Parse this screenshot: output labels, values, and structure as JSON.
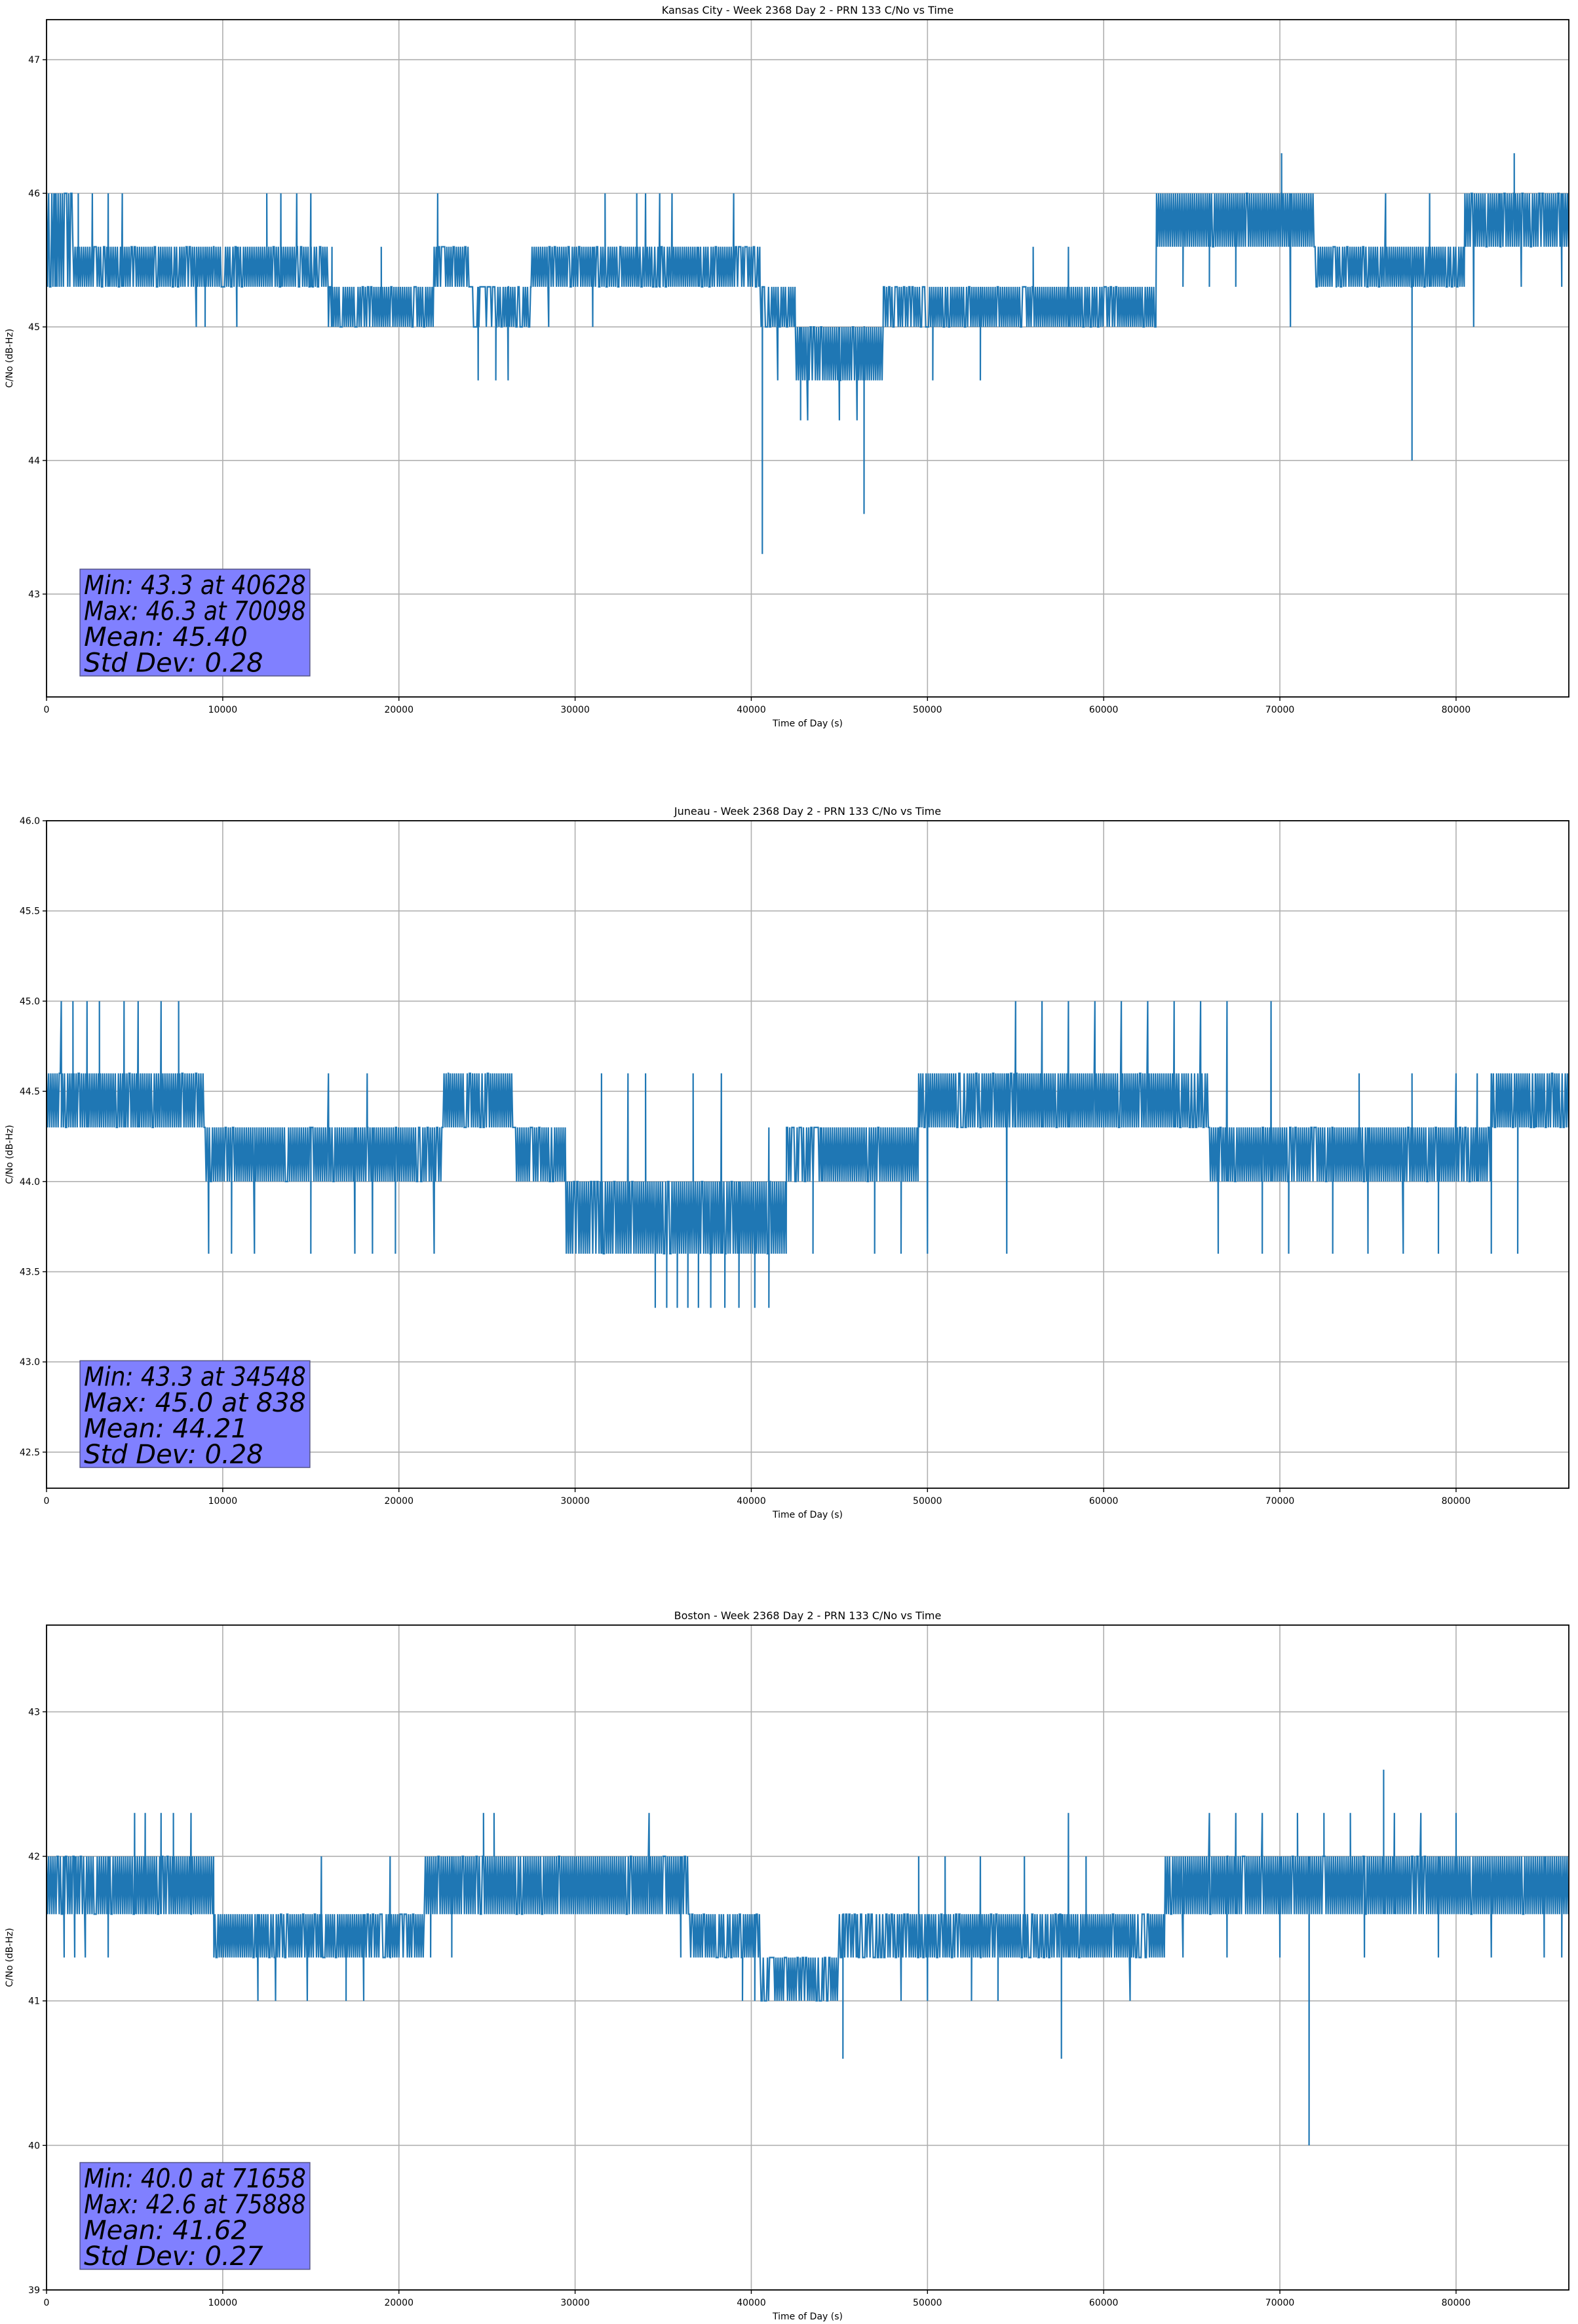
{
  "colors": {
    "line": "#1f77b4",
    "grid": "#b0b0b0",
    "statbox_fill": "#8080ff"
  },
  "chart_data": [
    {
      "type": "line",
      "title": "Kansas City - Week 2368 Day 2 - PRN 133 C/No vs Time",
      "xlabel": "Time of Day (s)",
      "ylabel": "C/No (dB-Hz)",
      "xlim": [
        0,
        86400
      ],
      "ylim": [
        42.23,
        47.3
      ],
      "grid": true,
      "x_ticks": [
        "0",
        "10000",
        "20000",
        "30000",
        "40000",
        "50000",
        "60000",
        "70000",
        "80000"
      ],
      "x_tick_values": [
        0,
        10000,
        20000,
        30000,
        40000,
        50000,
        60000,
        70000,
        80000
      ],
      "y_ticks": [
        "43",
        "44",
        "45",
        "46",
        "47"
      ],
      "y_tick_values": [
        43,
        44,
        45,
        46,
        47
      ],
      "stats": {
        "min_label": "Min: 43.3 at 40628",
        "max_label": "Max: 46.3 at 70098",
        "mean_label": "Mean: 45.40",
        "std_label": "Std Dev: 0.28",
        "placement": "bottom-left"
      },
      "series": {
        "name": "C/No",
        "segments": [
          [
            0,
            1500,
            45.3,
            46.0,
            0.8
          ],
          [
            1500,
            9500,
            45.3,
            45.6,
            0.9
          ],
          [
            9500,
            12500,
            45.3,
            45.6,
            0.9
          ],
          [
            12500,
            16000,
            45.3,
            45.6,
            0.9
          ],
          [
            16000,
            22000,
            45.0,
            45.3,
            0.9
          ],
          [
            22000,
            24000,
            45.3,
            45.6,
            0.9
          ],
          [
            24000,
            27500,
            45.0,
            45.3,
            0.6
          ],
          [
            27500,
            37000,
            45.3,
            45.6,
            0.9
          ],
          [
            37000,
            40500,
            45.3,
            45.6,
            0.9
          ],
          [
            40500,
            42500,
            45.0,
            45.3,
            0.7
          ],
          [
            42500,
            47500,
            44.6,
            45.0,
            0.9
          ],
          [
            47500,
            50000,
            45.0,
            45.3,
            0.7
          ],
          [
            50000,
            56000,
            45.0,
            45.3,
            0.9
          ],
          [
            56000,
            63000,
            45.0,
            45.3,
            0.9
          ],
          [
            63000,
            72000,
            45.6,
            46.0,
            0.95
          ],
          [
            72000,
            80500,
            45.3,
            45.6,
            0.9
          ],
          [
            80500,
            86400,
            45.6,
            46.0,
            0.9
          ]
        ],
        "excursions": [
          [
            500,
            46.0
          ],
          [
            1800,
            46.0
          ],
          [
            2600,
            46.0
          ],
          [
            3500,
            46.0
          ],
          [
            4300,
            46.0
          ],
          [
            8500,
            45.0
          ],
          [
            9000,
            45.0
          ],
          [
            10800,
            45.0
          ],
          [
            12500,
            46.0
          ],
          [
            13300,
            46.0
          ],
          [
            14200,
            46.0
          ],
          [
            15000,
            46.0
          ],
          [
            16200,
            45.6
          ],
          [
            19000,
            45.6
          ],
          [
            22200,
            46.0
          ],
          [
            24500,
            44.6
          ],
          [
            25500,
            44.6
          ],
          [
            26200,
            44.6
          ],
          [
            28500,
            45.0
          ],
          [
            31000,
            45.0
          ],
          [
            31700,
            46.0
          ],
          [
            33500,
            46.0
          ],
          [
            34000,
            46.0
          ],
          [
            34800,
            46.0
          ],
          [
            35500,
            46.0
          ],
          [
            39000,
            46.0
          ],
          [
            41500,
            44.6
          ],
          [
            43200,
            44.3
          ],
          [
            45000,
            44.3
          ],
          [
            46000,
            44.3
          ],
          [
            50300,
            44.6
          ],
          [
            53000,
            44.6
          ],
          [
            56000,
            45.6
          ],
          [
            58000,
            45.6
          ],
          [
            64500,
            45.3
          ],
          [
            66000,
            45.3
          ],
          [
            67500,
            45.3
          ],
          [
            70600,
            45.0
          ],
          [
            73200,
            45.3
          ],
          [
            76000,
            46.0
          ],
          [
            78500,
            46.0
          ],
          [
            81000,
            45.0
          ],
          [
            82500,
            46.0
          ],
          [
            83700,
            45.3
          ],
          [
            86000,
            45.3
          ]
        ],
        "spikes": [
          [
            40628,
            45.3,
            43.3
          ],
          [
            46400,
            45.0,
            43.6
          ],
          [
            70098,
            46.0,
            46.3
          ],
          [
            77500,
            45.3,
            44.0
          ],
          [
            83300,
            46.0,
            46.3
          ],
          [
            42800,
            45.0,
            44.3
          ]
        ]
      }
    },
    {
      "type": "line",
      "title": "Juneau - Week 2368 Day 2 - PRN 133 C/No vs Time",
      "xlabel": "Time of Day (s)",
      "ylabel": "C/No (dB-Hz)",
      "xlim": [
        0,
        86400
      ],
      "ylim": [
        42.3,
        46.0
      ],
      "grid": true,
      "x_ticks": [
        "0",
        "10000",
        "20000",
        "30000",
        "40000",
        "50000",
        "60000",
        "70000",
        "80000"
      ],
      "x_tick_values": [
        0,
        10000,
        20000,
        30000,
        40000,
        50000,
        60000,
        70000,
        80000
      ],
      "y_ticks": [
        "42.5",
        "43.0",
        "43.5",
        "44.0",
        "44.5",
        "45.0",
        "45.5",
        "46.0"
      ],
      "y_tick_values": [
        42.5,
        43.0,
        43.5,
        44.0,
        44.5,
        45.0,
        45.5,
        46.0
      ],
      "stats": {
        "min_label": "Min: 43.3 at 34548",
        "max_label": "Max: 45.0 at 838",
        "mean_label": "Mean: 44.21",
        "std_label": "Std Dev: 0.28",
        "placement": "bottom-left"
      },
      "series": {
        "name": "C/No",
        "segments": [
          [
            0,
            9000,
            44.3,
            44.6,
            0.95
          ],
          [
            9000,
            22500,
            44.0,
            44.3,
            0.9
          ],
          [
            22500,
            26500,
            44.3,
            44.6,
            0.85
          ],
          [
            26500,
            29500,
            44.0,
            44.3,
            0.85
          ],
          [
            29500,
            34000,
            43.6,
            44.0,
            0.85
          ],
          [
            34000,
            42000,
            43.6,
            44.0,
            0.95
          ],
          [
            42000,
            44000,
            44.0,
            44.3,
            0.7
          ],
          [
            44000,
            49500,
            44.0,
            44.3,
            0.95
          ],
          [
            49500,
            54000,
            44.3,
            44.6,
            0.9
          ],
          [
            54000,
            66000,
            44.3,
            44.6,
            0.95
          ],
          [
            66000,
            73000,
            44.0,
            44.3,
            0.9
          ],
          [
            73000,
            82000,
            44.0,
            44.3,
            0.95
          ],
          [
            82000,
            86400,
            44.3,
            44.6,
            0.9
          ]
        ],
        "excursions": [
          [
            838,
            45.0
          ],
          [
            1500,
            45.0
          ],
          [
            2300,
            45.0
          ],
          [
            3000,
            45.0
          ],
          [
            4400,
            45.0
          ],
          [
            5200,
            45.0
          ],
          [
            6500,
            45.0
          ],
          [
            7500,
            45.0
          ],
          [
            9200,
            43.6
          ],
          [
            10500,
            43.6
          ],
          [
            11800,
            43.6
          ],
          [
            15000,
            43.6
          ],
          [
            17500,
            43.6
          ],
          [
            18500,
            43.6
          ],
          [
            19800,
            43.6
          ],
          [
            22000,
            43.6
          ],
          [
            16000,
            44.6
          ],
          [
            18200,
            44.6
          ],
          [
            22800,
            44.6
          ],
          [
            31500,
            44.6
          ],
          [
            33000,
            44.6
          ],
          [
            34000,
            44.6
          ],
          [
            36700,
            44.6
          ],
          [
            38300,
            44.6
          ],
          [
            41000,
            44.3
          ],
          [
            43500,
            43.6
          ],
          [
            47000,
            43.6
          ],
          [
            48500,
            43.6
          ],
          [
            50000,
            43.6
          ],
          [
            54500,
            43.6
          ],
          [
            55000,
            45.0
          ],
          [
            56500,
            45.0
          ],
          [
            58000,
            45.0
          ],
          [
            59500,
            45.0
          ],
          [
            61000,
            45.0
          ],
          [
            62500,
            45.0
          ],
          [
            64000,
            45.0
          ],
          [
            65500,
            45.0
          ],
          [
            67000,
            45.0
          ],
          [
            69500,
            45.0
          ],
          [
            66500,
            43.6
          ],
          [
            69000,
            43.6
          ],
          [
            70500,
            43.6
          ],
          [
            73000,
            43.6
          ],
          [
            75000,
            43.6
          ],
          [
            77000,
            43.6
          ],
          [
            79000,
            43.6
          ],
          [
            82000,
            43.6
          ],
          [
            83500,
            43.6
          ],
          [
            74500,
            44.6
          ],
          [
            77500,
            44.6
          ],
          [
            80000,
            44.6
          ],
          [
            81200,
            44.6
          ],
          [
            84500,
            44.6
          ]
        ],
        "spikes": [
          [
            34548,
            43.6,
            43.3
          ],
          [
            35200,
            43.6,
            43.3
          ],
          [
            35800,
            43.6,
            43.3
          ],
          [
            36400,
            43.6,
            43.3
          ],
          [
            37000,
            43.6,
            43.3
          ],
          [
            37700,
            43.6,
            43.3
          ],
          [
            38500,
            43.6,
            43.3
          ],
          [
            39300,
            43.6,
            43.3
          ],
          [
            40200,
            43.6,
            43.3
          ],
          [
            41000,
            43.6,
            43.3
          ]
        ]
      }
    },
    {
      "type": "line",
      "title": "Boston - Week 2368 Day 2 - PRN 133 C/No vs Time",
      "xlabel": "Time of Day (s)",
      "ylabel": "C/No (dB-Hz)",
      "xlim": [
        0,
        86400
      ],
      "ylim": [
        39.0,
        43.6
      ],
      "grid": true,
      "x_ticks": [
        "0",
        "10000",
        "20000",
        "30000",
        "40000",
        "50000",
        "60000",
        "70000",
        "80000"
      ],
      "x_tick_values": [
        0,
        10000,
        20000,
        30000,
        40000,
        50000,
        60000,
        70000,
        80000
      ],
      "y_ticks": [
        "39",
        "40",
        "41",
        "42",
        "43"
      ],
      "y_tick_values": [
        39,
        40,
        41,
        42,
        43
      ],
      "stats": {
        "min_label": "Min: 40.0 at 71658",
        "max_label": "Max: 42.6 at 75888",
        "mean_label": "Mean: 41.62",
        "std_label": "Std Dev: 0.27",
        "placement": "bottom-left"
      },
      "series": {
        "name": "C/No",
        "segments": [
          [
            0,
            9500,
            41.6,
            42.0,
            0.9
          ],
          [
            9500,
            21500,
            41.3,
            41.6,
            0.9
          ],
          [
            21500,
            36500,
            41.6,
            42.0,
            0.95
          ],
          [
            36500,
            40500,
            41.3,
            41.6,
            0.85
          ],
          [
            40500,
            45000,
            41.0,
            41.3,
            0.8
          ],
          [
            45000,
            48000,
            41.3,
            41.6,
            0.8
          ],
          [
            48000,
            57500,
            41.3,
            41.6,
            0.9
          ],
          [
            57500,
            63500,
            41.3,
            41.6,
            0.9
          ],
          [
            63500,
            86400,
            41.6,
            42.0,
            0.95
          ]
        ],
        "excursions": [
          [
            1000,
            41.3
          ],
          [
            1600,
            41.3
          ],
          [
            2200,
            41.3
          ],
          [
            3500,
            41.3
          ],
          [
            5000,
            42.3
          ],
          [
            5600,
            42.3
          ],
          [
            6500,
            42.3
          ],
          [
            7200,
            42.3
          ],
          [
            8200,
            42.3
          ],
          [
            12000,
            41.0
          ],
          [
            13000,
            41.0
          ],
          [
            14800,
            41.0
          ],
          [
            15600,
            42.0
          ],
          [
            17000,
            41.0
          ],
          [
            18000,
            41.0
          ],
          [
            19500,
            42.0
          ],
          [
            21800,
            41.3
          ],
          [
            23000,
            41.3
          ],
          [
            24800,
            42.3
          ],
          [
            25400,
            42.3
          ],
          [
            34200,
            42.3
          ],
          [
            36000,
            41.3
          ],
          [
            39500,
            41.0
          ],
          [
            46000,
            41.6
          ],
          [
            48500,
            41.0
          ],
          [
            50000,
            41.0
          ],
          [
            52500,
            41.0
          ],
          [
            54000,
            41.0
          ],
          [
            49500,
            42.0
          ],
          [
            51000,
            42.0
          ],
          [
            53000,
            42.0
          ],
          [
            55500,
            42.0
          ],
          [
            58000,
            42.3
          ],
          [
            59000,
            42.0
          ],
          [
            61500,
            41.0
          ],
          [
            64500,
            41.3
          ],
          [
            66000,
            42.3
          ],
          [
            67500,
            42.3
          ],
          [
            69000,
            42.3
          ],
          [
            71000,
            42.3
          ],
          [
            72500,
            42.3
          ],
          [
            74000,
            42.3
          ],
          [
            76500,
            42.3
          ],
          [
            78000,
            42.3
          ],
          [
            80000,
            42.3
          ],
          [
            67000,
            41.3
          ],
          [
            70000,
            41.3
          ],
          [
            74800,
            41.3
          ],
          [
            79000,
            41.3
          ],
          [
            82000,
            41.3
          ],
          [
            85000,
            41.3
          ],
          [
            86000,
            41.3
          ]
        ],
        "spikes": [
          [
            45200,
            41.3,
            40.6
          ],
          [
            57600,
            41.3,
            40.6
          ],
          [
            71658,
            41.6,
            40.0
          ],
          [
            75888,
            42.0,
            42.6
          ],
          [
            40200,
            41.3,
            41.0
          ]
        ]
      }
    }
  ]
}
